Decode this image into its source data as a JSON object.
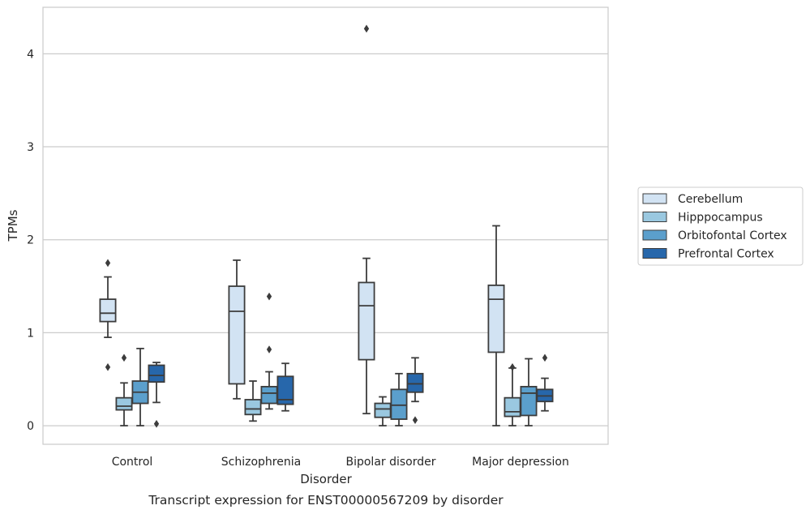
{
  "chart_data": {
    "type": "boxplot",
    "title": "Transcript expression for ENST00000567209 by disorder",
    "xlabel": "Disorder",
    "ylabel": "TPMs",
    "ylim": [
      -0.2,
      4.5
    ],
    "yticks": [
      0,
      1,
      2,
      3,
      4
    ],
    "grid": true,
    "legend_position": "right",
    "categories": [
      "Control",
      "Schizophrenia",
      "Bipolar disorder",
      "Major depression"
    ],
    "series": [
      {
        "name": "Cerebellum",
        "color": "#d2e3f3",
        "boxes": [
          {
            "whislo": 0.95,
            "q1": 1.12,
            "med": 1.21,
            "q3": 1.36,
            "whishi": 1.6,
            "fliers": [
              1.75,
              0.63
            ]
          },
          {
            "whislo": 0.29,
            "q1": 0.45,
            "med": 1.23,
            "q3": 1.5,
            "whishi": 1.78,
            "fliers": []
          },
          {
            "whislo": 0.13,
            "q1": 0.71,
            "med": 1.29,
            "q3": 1.54,
            "whishi": 1.8,
            "fliers": [
              4.27
            ]
          },
          {
            "whislo": 0.0,
            "q1": 0.79,
            "med": 1.36,
            "q3": 1.51,
            "whishi": 2.15,
            "fliers": []
          }
        ]
      },
      {
        "name": "Hipppocampus",
        "color": "#9ac8e0",
        "boxes": [
          {
            "whislo": 0.0,
            "q1": 0.17,
            "med": 0.21,
            "q3": 0.3,
            "whishi": 0.46,
            "fliers": [
              0.73
            ]
          },
          {
            "whislo": 0.05,
            "q1": 0.12,
            "med": 0.18,
            "q3": 0.28,
            "whishi": 0.48,
            "fliers": []
          },
          {
            "whislo": 0.0,
            "q1": 0.09,
            "med": 0.18,
            "q3": 0.24,
            "whishi": 0.31,
            "fliers": []
          },
          {
            "whislo": 0.0,
            "q1": 0.1,
            "med": 0.15,
            "q3": 0.3,
            "whishi": 0.62,
            "fliers": [
              0.63
            ]
          }
        ]
      },
      {
        "name": "Orbitofontal Cortex",
        "color": "#5b9fcc",
        "boxes": [
          {
            "whislo": 0.0,
            "q1": 0.24,
            "med": 0.36,
            "q3": 0.48,
            "whishi": 0.83,
            "fliers": []
          },
          {
            "whislo": 0.18,
            "q1": 0.24,
            "med": 0.35,
            "q3": 0.42,
            "whishi": 0.58,
            "fliers": [
              1.39,
              0.82
            ]
          },
          {
            "whislo": 0.0,
            "q1": 0.07,
            "med": 0.22,
            "q3": 0.39,
            "whishi": 0.56,
            "fliers": []
          },
          {
            "whislo": 0.0,
            "q1": 0.11,
            "med": 0.35,
            "q3": 0.42,
            "whishi": 0.72,
            "fliers": []
          }
        ]
      },
      {
        "name": "Prefrontal Cortex",
        "color": "#2767ab",
        "boxes": [
          {
            "whislo": 0.25,
            "q1": 0.47,
            "med": 0.54,
            "q3": 0.65,
            "whishi": 0.68,
            "fliers": [
              0.02
            ]
          },
          {
            "whislo": 0.16,
            "q1": 0.23,
            "med": 0.28,
            "q3": 0.53,
            "whishi": 0.67,
            "fliers": []
          },
          {
            "whislo": 0.26,
            "q1": 0.36,
            "med": 0.45,
            "q3": 0.56,
            "whishi": 0.73,
            "fliers": [
              0.06
            ]
          },
          {
            "whislo": 0.16,
            "q1": 0.26,
            "med": 0.32,
            "q3": 0.39,
            "whishi": 0.51,
            "fliers": [
              0.73
            ]
          }
        ]
      }
    ]
  }
}
